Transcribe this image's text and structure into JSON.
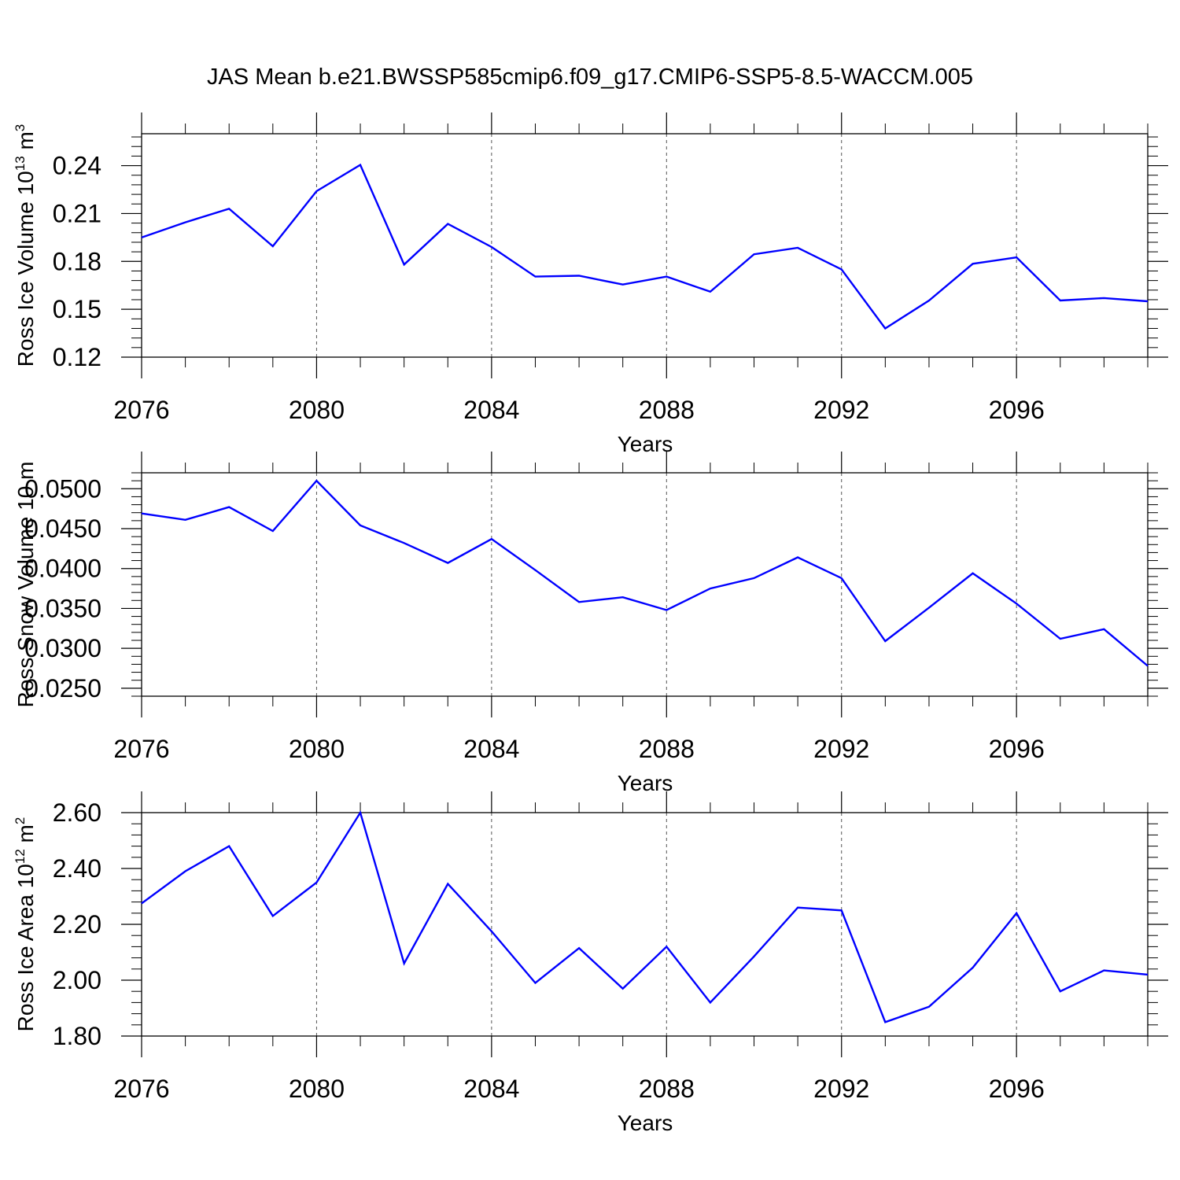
{
  "title": "JAS Mean b.e21.BWSSP585cmip6.f09_g17.CMIP6-SSP5-8.5-WACCM.005",
  "line_color": "#0000ff",
  "chart_data": [
    {
      "type": "line",
      "xlabel": "Years",
      "ylabel": "Ross Ice Volume 10",
      "ylabel_sup": "13",
      "ylabel_unit": "m",
      "ylabel_unit_sup": "3",
      "xlim": [
        2076,
        2099
      ],
      "ylim": [
        0.12,
        0.26
      ],
      "yticks": [
        "0.12",
        "0.15",
        "0.18",
        "0.21",
        "0.24"
      ],
      "xticks": [
        "2076",
        "2080",
        "2084",
        "2088",
        "2092",
        "2096"
      ],
      "x": [
        2076,
        2077,
        2078,
        2079,
        2080,
        2081,
        2082,
        2083,
        2084,
        2085,
        2086,
        2087,
        2088,
        2089,
        2090,
        2091,
        2092,
        2093,
        2094,
        2095,
        2096,
        2097,
        2098,
        2099
      ],
      "series": [
        {
          "values": [
            0.195,
            0.2045,
            0.213,
            0.1895,
            0.224,
            0.2405,
            0.178,
            0.2035,
            0.189,
            0.1705,
            0.171,
            0.1655,
            0.1705,
            0.161,
            0.1845,
            0.1885,
            0.175,
            0.138,
            0.1555,
            0.1785,
            0.1825,
            0.1555,
            0.157,
            0.155
          ]
        }
      ]
    },
    {
      "type": "line",
      "xlabel": "Years",
      "ylabel": "Ross Snow Volume 10",
      "ylabel_sup": "",
      "ylabel_unit": "m",
      "ylabel_unit_sup": "",
      "xlim": [
        2076,
        2099
      ],
      "ylim": [
        0.024,
        0.052
      ],
      "yticks": [
        "0.0250",
        "0.0300",
        "0.0350",
        "0.0400",
        "0.0450",
        "0.0500"
      ],
      "xticks": [
        "2076",
        "2080",
        "2084",
        "2088",
        "2092",
        "2096"
      ],
      "x": [
        2076,
        2077,
        2078,
        2079,
        2080,
        2081,
        2082,
        2083,
        2084,
        2085,
        2086,
        2087,
        2088,
        2089,
        2090,
        2091,
        2092,
        2093,
        2094,
        2095,
        2096,
        2097,
        2098,
        2099
      ],
      "series": [
        {
          "values": [
            0.0469,
            0.0461,
            0.0477,
            0.0447,
            0.051,
            0.0454,
            0.0432,
            0.0407,
            0.0437,
            0.0398,
            0.0358,
            0.0364,
            0.0348,
            0.0375,
            0.0388,
            0.0414,
            0.0388,
            0.0309,
            0.0351,
            0.0394,
            0.0356,
            0.0312,
            0.0324,
            0.0278
          ]
        }
      ]
    },
    {
      "type": "line",
      "xlabel": "Years",
      "ylabel": "Ross Ice Area 10",
      "ylabel_sup": "12",
      "ylabel_unit": "m",
      "ylabel_unit_sup": "2",
      "xlim": [
        2076,
        2099
      ],
      "ylim": [
        1.8,
        2.6
      ],
      "yticks": [
        "1.80",
        "2.00",
        "2.20",
        "2.40",
        "2.60"
      ],
      "xticks": [
        "2076",
        "2080",
        "2084",
        "2088",
        "2092",
        "2096"
      ],
      "x": [
        2076,
        2077,
        2078,
        2079,
        2080,
        2081,
        2082,
        2083,
        2084,
        2085,
        2086,
        2087,
        2088,
        2089,
        2090,
        2091,
        2092,
        2093,
        2094,
        2095,
        2096,
        2097,
        2098,
        2099
      ],
      "series": [
        {
          "values": [
            2.275,
            2.39,
            2.48,
            2.23,
            2.35,
            2.6,
            2.06,
            2.345,
            2.175,
            1.99,
            2.115,
            1.97,
            2.12,
            1.92,
            2.085,
            2.26,
            2.25,
            1.85,
            1.905,
            2.045,
            2.24,
            1.96,
            2.035,
            2.02
          ]
        }
      ]
    }
  ]
}
